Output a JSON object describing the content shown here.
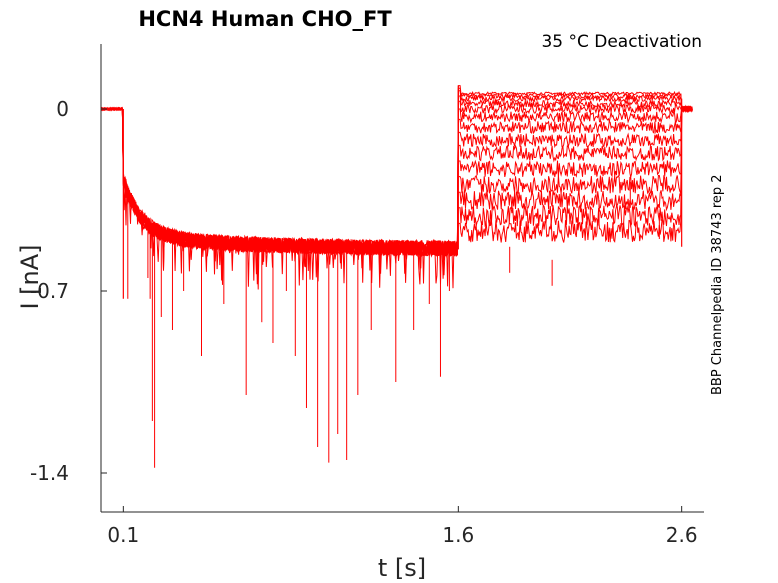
{
  "chart_data": {
    "type": "line",
    "title": "HCN4  Human  CHO_FT",
    "annotation": "35 °C  Deactivation",
    "side_note": "BBP Channelpedia ID 38743 rep 2",
    "xlabel": "t [s]",
    "ylabel": "I [nA]",
    "xlim": [
      0.0,
      2.7
    ],
    "ylim": [
      -1.55,
      0.25
    ],
    "xticks": [
      {
        "value": 0.1,
        "label": "0.1"
      },
      {
        "value": 1.6,
        "label": "1.6"
      },
      {
        "value": 2.6,
        "label": "2.6"
      }
    ],
    "yticks": [
      {
        "value": 0,
        "label": "0"
      },
      {
        "value": -0.7,
        "label": "-0.7"
      },
      {
        "value": -1.4,
        "label": "-1.4"
      }
    ],
    "grid": false,
    "color": "#ff0000",
    "protocol": {
      "baseline_end": 0.1,
      "hold_end": 1.6,
      "step_end": 2.6,
      "baseline_current": 0.0,
      "hold_current": -0.54,
      "sweep_levels": [
        0.06,
        0.05,
        0.04,
        0.02,
        0.0,
        -0.03,
        -0.07,
        -0.12,
        -0.17,
        -0.23,
        -0.29,
        -0.35,
        -0.41,
        -0.47
      ]
    },
    "negative_spikes": [
      {
        "x": 0.12,
        "y": -0.73
      },
      {
        "x": 0.21,
        "y": -0.65
      },
      {
        "x": 0.22,
        "y": -0.73
      },
      {
        "x": 0.23,
        "y": -1.2
      },
      {
        "x": 0.24,
        "y": -1.38
      },
      {
        "x": 0.27,
        "y": -0.8
      },
      {
        "x": 0.32,
        "y": -0.85
      },
      {
        "x": 0.37,
        "y": -0.7
      },
      {
        "x": 0.45,
        "y": -0.95
      },
      {
        "x": 0.55,
        "y": -0.75
      },
      {
        "x": 0.65,
        "y": -1.1
      },
      {
        "x": 0.72,
        "y": -0.82
      },
      {
        "x": 0.77,
        "y": -0.9
      },
      {
        "x": 0.83,
        "y": -0.7
      },
      {
        "x": 0.87,
        "y": -0.95
      },
      {
        "x": 0.92,
        "y": -1.15
      },
      {
        "x": 0.97,
        "y": -1.3
      },
      {
        "x": 1.02,
        "y": -1.36
      },
      {
        "x": 1.06,
        "y": -1.25
      },
      {
        "x": 1.1,
        "y": -1.35
      },
      {
        "x": 1.15,
        "y": -1.1
      },
      {
        "x": 1.21,
        "y": -0.85
      },
      {
        "x": 1.32,
        "y": -1.05
      },
      {
        "x": 1.4,
        "y": -0.85
      },
      {
        "x": 1.47,
        "y": -0.75
      },
      {
        "x": 1.52,
        "y": -1.03
      },
      {
        "x": 1.56,
        "y": -0.7
      }
    ],
    "step_dips": [
      {
        "x": 1.83,
        "y": -0.63
      },
      {
        "x": 2.02,
        "y": -0.68
      },
      {
        "x": 2.23,
        "y": -0.45
      },
      {
        "x": 2.37,
        "y": -0.38
      },
      {
        "x": 2.5,
        "y": -0.5
      }
    ]
  }
}
